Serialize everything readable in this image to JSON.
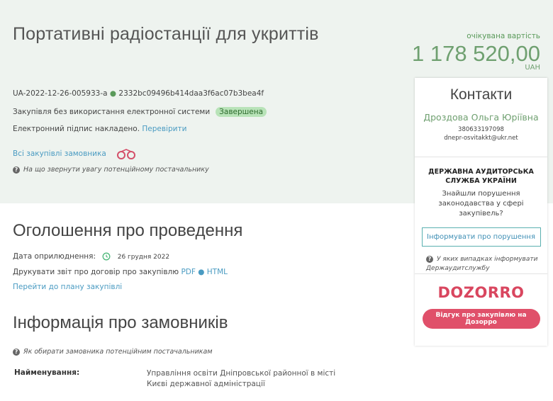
{
  "header": {
    "title": "Портативні радіостанції для укриттів",
    "id": "UA-2022-12-26-005933-a",
    "hash": "2332bc09496b414daa3f6ac07b3bea4f",
    "procurement_type": "Закупівля без використання електронної системи",
    "status": "Завершена",
    "signature_text": "Електронний підпис накладено.",
    "verify_link": "Перевірити",
    "all_purchases_link": "Всі закупівлі замовника",
    "attention_hint": "На що звернути увагу потенційному постачальнику"
  },
  "price": {
    "label": "очікувана вартість",
    "value": "1 178 520,00",
    "currency": "UAH"
  },
  "announcement": {
    "heading": "Оголошення про проведення",
    "date_label": "Дата оприлюднення:",
    "date": "26 грудня 2022",
    "print_label": "Друкувати звіт про договір про закупівлю",
    "pdf": "PDF",
    "html": "HTML",
    "plan_link": "Перейти до плану закупівлі"
  },
  "customers": {
    "heading": "Інформація про замовників",
    "hint": "Як обирати замовника потенційним постачальникам",
    "name_label": "Найменування:",
    "name_line1": "Управління освіти Дніпровської районної в місті",
    "name_line2": "Києві державної адміністрації"
  },
  "contacts": {
    "heading": "Контакти",
    "person": "Дроздова Ольга Юріївна",
    "phone": "380633197098",
    "email": "dnepr-osvitakkt@ukr.net"
  },
  "audit": {
    "title_line1": "ДЕРЖАВНА АУДИТОРСЬКА",
    "title_line2": "СЛУЖБА УКРАЇНИ",
    "question": "Знайшли порушення законодавства у сфері закупівель?",
    "button": "Інформувати про порушення",
    "hint": "У яких випадках інформувати Держаудитслужбу"
  },
  "dozorro": {
    "logo": "DOZORRO",
    "button": "Відгук про закупівлю на Дозорро"
  },
  "colors": {
    "hero_bg": "#eef3ef",
    "accent_green": "#6fa070",
    "link": "#4a9bc2",
    "dozorro_red": "#e0506a"
  }
}
